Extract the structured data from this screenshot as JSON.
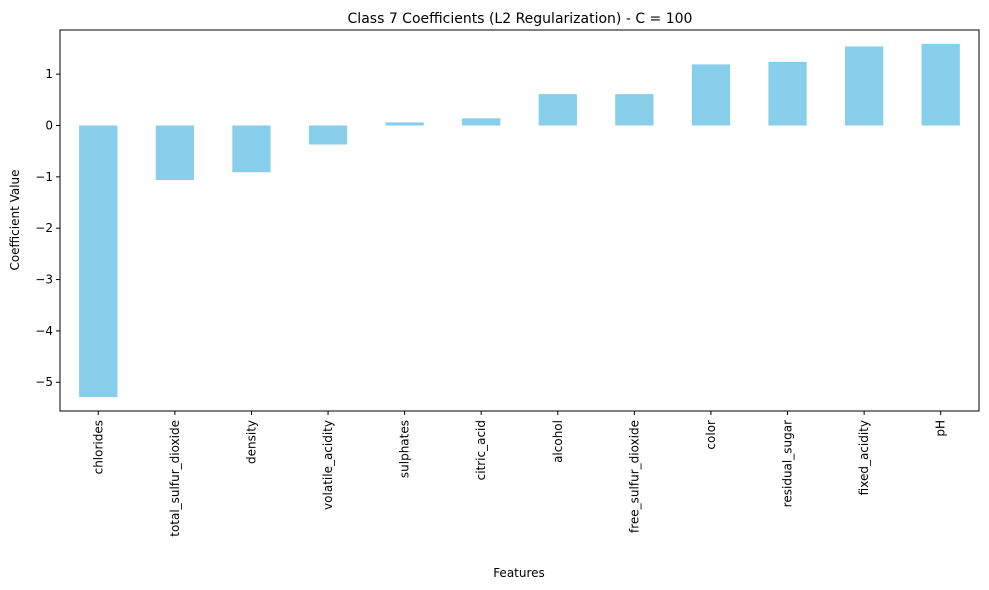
{
  "chart_data": {
    "type": "bar",
    "title": "Class 7 Coefficients (L2 Regularization) - C = 100",
    "xlabel": "Features",
    "ylabel": "Coefficient Value",
    "categories": [
      "chlorides",
      "total_sulfur_dioxide",
      "density",
      "volatile_acidity",
      "sulphates",
      "citric_acid",
      "alcohol",
      "free_sulfur_dioxide",
      "color",
      "residual_sugar",
      "fixed_acidity",
      "pH"
    ],
    "values": [
      -5.29,
      -1.06,
      -0.91,
      -0.37,
      0.06,
      0.14,
      0.61,
      0.61,
      1.19,
      1.24,
      1.54,
      1.59
    ],
    "ylim": [
      -5.56,
      1.86
    ],
    "yticks": [
      -5,
      -4,
      -3,
      -2,
      -1,
      0,
      1
    ],
    "ytick_labels": [
      "−5",
      "−4",
      "−3",
      "−2",
      "−1",
      "0",
      "1"
    ],
    "bar_color": "#87CEEB",
    "grid": false,
    "legend": "none"
  }
}
